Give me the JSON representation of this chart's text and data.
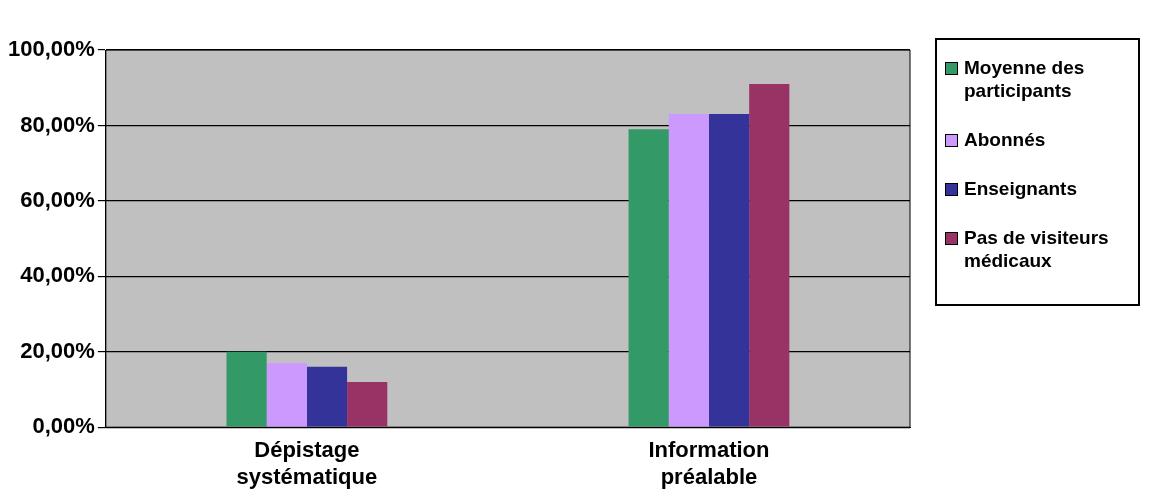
{
  "chart_data": {
    "type": "bar",
    "categories": [
      "Dépistage systématique",
      "Information préalable"
    ],
    "series": [
      {
        "name": "Moyenne des participants",
        "color": "#339966",
        "values": [
          20,
          79
        ]
      },
      {
        "name": "Abonnés",
        "color": "#cc99ff",
        "values": [
          17,
          83
        ]
      },
      {
        "name": "Enseignants",
        "color": "#333399",
        "values": [
          16,
          83
        ]
      },
      {
        "name": "Pas de visiteurs médicaux",
        "color": "#993366",
        "values": [
          12,
          91
        ]
      }
    ],
    "ylim": [
      0,
      100
    ],
    "yticks": [
      {
        "value": 0,
        "label": "0,00%"
      },
      {
        "value": 20,
        "label": "20,00%"
      },
      {
        "value": 40,
        "label": "40,00%"
      },
      {
        "value": 60,
        "label": "60,00%"
      },
      {
        "value": 80,
        "label": "80,00%"
      },
      {
        "value": 100,
        "label": "100,00%"
      }
    ],
    "grid": "y",
    "legend": "right"
  }
}
